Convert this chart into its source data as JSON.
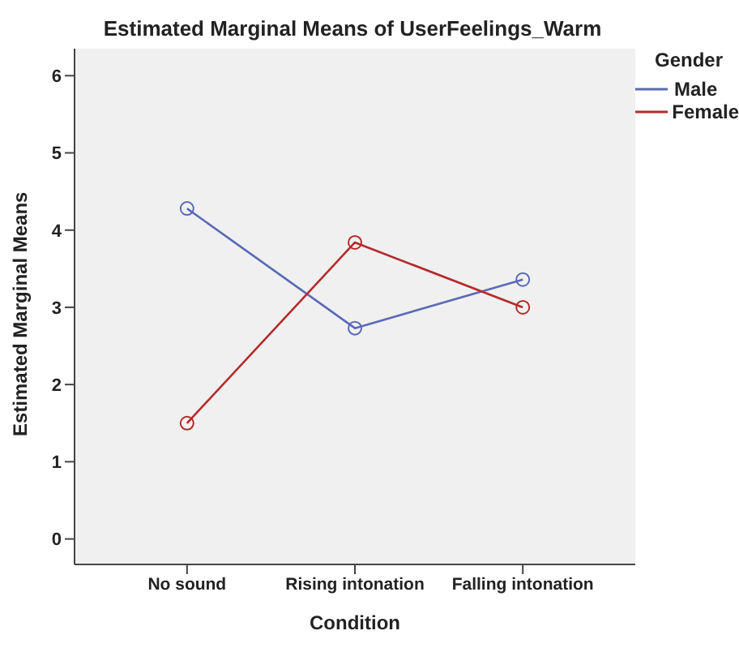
{
  "chart_data": {
    "type": "line",
    "title": "Estimated Marginal Means of UserFeelings_Warm",
    "xlabel": "Condition",
    "ylabel": "Estimated Marginal Means",
    "legend_title": "Gender",
    "categories": [
      "No sound",
      "Rising intonation",
      "Falling intonation"
    ],
    "series": [
      {
        "name": "Male",
        "color": "#5a6ab8",
        "values": [
          4.28,
          2.73,
          3.36
        ]
      },
      {
        "name": "Female",
        "color": "#b52a2a",
        "values": [
          1.5,
          3.84,
          3.0
        ]
      }
    ],
    "ylim": [
      -0.33,
      6.35
    ],
    "yticks": [
      0,
      1,
      2,
      3,
      4,
      5,
      6
    ],
    "grid": false,
    "legend": "top right",
    "marker": "circle",
    "line_style": "solid"
  }
}
